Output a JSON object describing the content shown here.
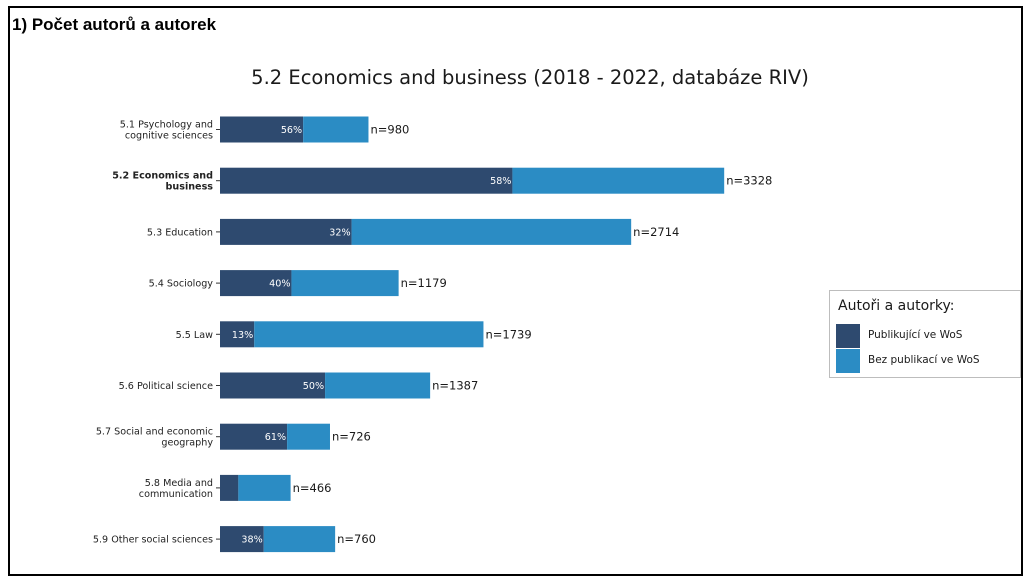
{
  "section_title": "1) Počet autorů a autorek",
  "chart_data": {
    "type": "bar",
    "orientation": "horizontal",
    "stacked": true,
    "title": "5.2 Economics and business (2018 - 2022, databáze RIV)",
    "highlight_category": "5.2 Economics and business",
    "categories": [
      "5.1 Psychology and cognitive sciences",
      "5.2 Economics and business",
      "5.3 Education",
      "5.4 Sociology",
      "5.5 Law",
      "5.6 Political science",
      "5.7 Social and economic geography",
      "5.8 Media and communication",
      "5.9 Other social sciences"
    ],
    "category_lines": [
      [
        "5.1 Psychology and",
        "cognitive sciences"
      ],
      [
        "5.2 Economics and",
        "business"
      ],
      [
        "5.3 Education"
      ],
      [
        "5.4 Sociology"
      ],
      [
        "5.5 Law"
      ],
      [
        "5.6 Political science"
      ],
      [
        "5.7 Social and economic",
        "geography"
      ],
      [
        "5.8 Media and",
        "communication"
      ],
      [
        "5.9 Other social sciences"
      ]
    ],
    "totals": [
      980,
      3328,
      2714,
      1179,
      1739,
      1387,
      726,
      466,
      760
    ],
    "total_labels": [
      "n=980",
      "n=3328",
      "n=2714",
      "n=1179",
      "n=1739",
      "n=1387",
      "n=726",
      "n=466",
      "n=760"
    ],
    "publishing_share": [
      0.56,
      0.58,
      0.32,
      0.4,
      0.13,
      0.5,
      0.61,
      0.26,
      0.38
    ],
    "share_labels": [
      "56%",
      "58%",
      "32%",
      "40%",
      "13%",
      "50%",
      "61%",
      "",
      "38%"
    ],
    "series": [
      {
        "name": "Publikující ve WoS",
        "color": "#2e4a6f"
      },
      {
        "name": "Bez publikací ve WoS",
        "color": "#2b8cc4"
      }
    ],
    "legend": {
      "title": "Autoři a autorky:",
      "position": "right"
    },
    "xlim": [
      0,
      3400
    ],
    "grid": false
  }
}
